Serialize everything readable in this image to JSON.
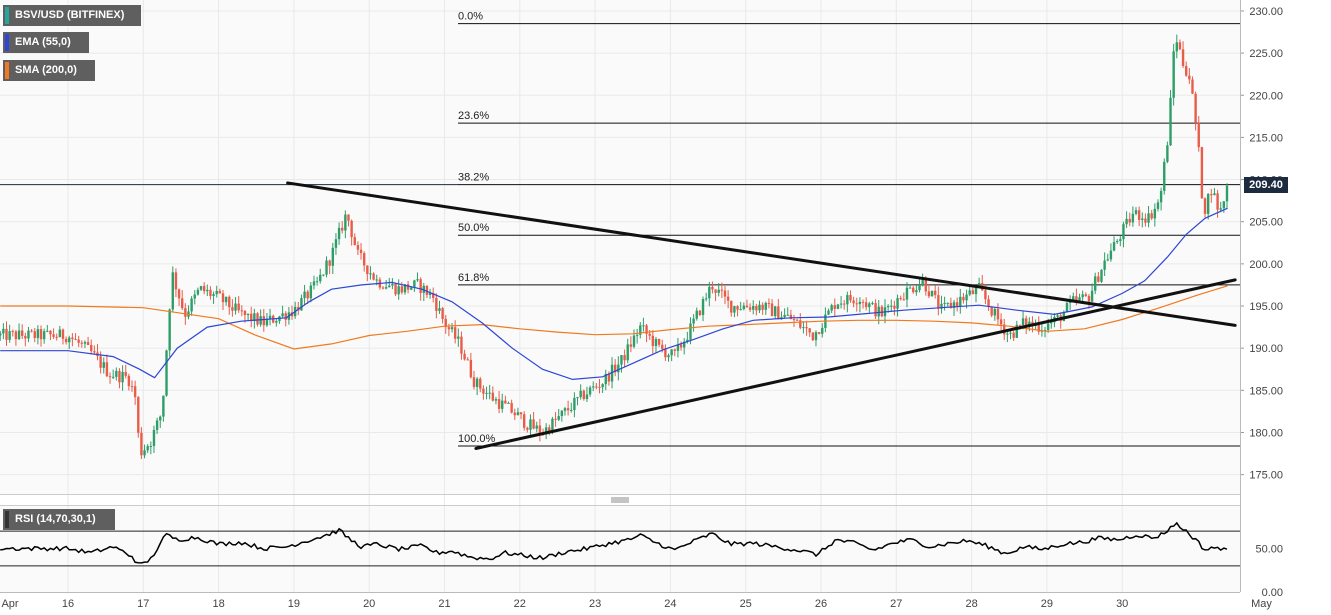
{
  "legends": {
    "main": "BSV/USD (BITFINEX)",
    "ema": "EMA (55,0)",
    "sma": "SMA (200,0)",
    "rsi": "RSI (14,70,30,1)"
  },
  "current_price": "209.40",
  "colors": {
    "up": "#2e9e68",
    "down": "#e85d4a",
    "ema": "#2d46d6",
    "sma": "#ef7a20",
    "trendline": "#111111",
    "fib": "#111111",
    "legend_bg": "#5f5f5f",
    "main_swatch": "#26a69a",
    "ema_swatch": "#2d46d6",
    "sma_swatch": "#ef7a20",
    "rsi_swatch": "#333333",
    "price_tag_bg": "#1d2b40",
    "grid": "#e9e9e9",
    "plot_bg": "#fafafa"
  },
  "chart_data": {
    "type": "candlestick",
    "pair": "BSV/USD",
    "exchange": "BITFINEX",
    "grid": true,
    "price_ylim": [
      172.7,
      231.3
    ],
    "y_ticks": [
      "230.00",
      "225.00",
      "220.00",
      "215.00",
      "210.00",
      "205.00",
      "200.00",
      "195.00",
      "190.00",
      "185.00",
      "180.00",
      "175.00"
    ],
    "x_ticks": [
      "Apr",
      "16",
      "17",
      "18",
      "19",
      "20",
      "21",
      "22",
      "23",
      "24",
      "25",
      "26",
      "27",
      "28",
      "29",
      "30",
      "May"
    ],
    "fibonacci": [
      {
        "label": "0.0%",
        "price": 228.5
      },
      {
        "label": "23.6%",
        "price": 216.7
      },
      {
        "label": "38.2%",
        "price": 209.4
      },
      {
        "label": "50.0%",
        "price": 203.4
      },
      {
        "label": "61.8%",
        "price": 197.5
      },
      {
        "label": "100.0%",
        "price": 178.4
      }
    ],
    "trendlines": [
      {
        "from": {
          "x": "Apr 18 22:00",
          "y": 209.6
        },
        "to": {
          "x": "May 1 12:00",
          "y": 192.7
        }
      },
      {
        "from": {
          "x": "Apr 21 10:00",
          "y": 178.1
        },
        "to": {
          "x": "May 1 12:00",
          "y": 198.1
        }
      }
    ],
    "close_path": [
      {
        "t": 0.0,
        "v": 191.5
      },
      {
        "t": 0.3,
        "v": 189.5
      },
      {
        "t": 0.55,
        "v": 187.0
      },
      {
        "t": 0.8,
        "v": 186.5
      },
      {
        "t": 0.9,
        "v": 184.0
      },
      {
        "t": 0.95,
        "v": 177.5
      },
      {
        "t": 1.1,
        "v": 179.0
      },
      {
        "t": 1.25,
        "v": 182.5
      },
      {
        "t": 1.38,
        "v": 199.0
      },
      {
        "t": 1.55,
        "v": 194.0
      },
      {
        "t": 1.75,
        "v": 197.0
      },
      {
        "t": 2.0,
        "v": 196.0
      },
      {
        "t": 2.3,
        "v": 194.0
      },
      {
        "t": 2.6,
        "v": 193.0
      },
      {
        "t": 3.0,
        "v": 194.5
      },
      {
        "t": 3.3,
        "v": 197.5
      },
      {
        "t": 3.5,
        "v": 201.0
      },
      {
        "t": 3.7,
        "v": 206.0
      },
      {
        "t": 3.85,
        "v": 201.0
      },
      {
        "t": 4.1,
        "v": 198.0
      },
      {
        "t": 4.4,
        "v": 197.0
      },
      {
        "t": 4.65,
        "v": 197.5
      },
      {
        "t": 4.85,
        "v": 196.0
      },
      {
        "t": 5.0,
        "v": 193.0
      },
      {
        "t": 5.2,
        "v": 190.5
      },
      {
        "t": 5.4,
        "v": 186.0
      },
      {
        "t": 5.65,
        "v": 184.0
      },
      {
        "t": 5.9,
        "v": 182.5
      },
      {
        "t": 6.1,
        "v": 181.0
      },
      {
        "t": 6.3,
        "v": 180.0
      },
      {
        "t": 6.55,
        "v": 182.0
      },
      {
        "t": 6.85,
        "v": 184.5
      },
      {
        "t": 7.1,
        "v": 186.0
      },
      {
        "t": 7.35,
        "v": 188.5
      },
      {
        "t": 7.6,
        "v": 192.5
      },
      {
        "t": 7.85,
        "v": 190.0
      },
      {
        "t": 8.05,
        "v": 189.0
      },
      {
        "t": 8.25,
        "v": 192.0
      },
      {
        "t": 8.55,
        "v": 197.5
      },
      {
        "t": 8.8,
        "v": 195.0
      },
      {
        "t": 9.2,
        "v": 195.0
      },
      {
        "t": 9.6,
        "v": 193.5
      },
      {
        "t": 9.9,
        "v": 191.5
      },
      {
        "t": 10.2,
        "v": 195.5
      },
      {
        "t": 10.5,
        "v": 196.0
      },
      {
        "t": 10.8,
        "v": 194.0
      },
      {
        "t": 11.1,
        "v": 196.5
      },
      {
        "t": 11.35,
        "v": 198.0
      },
      {
        "t": 11.6,
        "v": 194.5
      },
      {
        "t": 11.9,
        "v": 196.0
      },
      {
        "t": 12.1,
        "v": 197.0
      },
      {
        "t": 12.3,
        "v": 194.0
      },
      {
        "t": 12.5,
        "v": 191.5
      },
      {
        "t": 12.7,
        "v": 193.0
      },
      {
        "t": 12.95,
        "v": 192.5
      },
      {
        "t": 13.15,
        "v": 193.5
      },
      {
        "t": 13.35,
        "v": 195.5
      },
      {
        "t": 13.55,
        "v": 196.0
      },
      {
        "t": 13.75,
        "v": 200.0
      },
      {
        "t": 13.95,
        "v": 203.0
      },
      {
        "t": 14.15,
        "v": 206.0
      },
      {
        "t": 14.35,
        "v": 205.5
      },
      {
        "t": 14.5,
        "v": 207.5
      },
      {
        "t": 14.62,
        "v": 216.0
      },
      {
        "t": 14.7,
        "v": 227.5
      },
      {
        "t": 14.8,
        "v": 224.0
      },
      {
        "t": 14.9,
        "v": 222.0
      },
      {
        "t": 15.0,
        "v": 215.0
      },
      {
        "t": 15.08,
        "v": 206.0
      },
      {
        "t": 15.18,
        "v": 209.0
      },
      {
        "t": 15.3,
        "v": 206.0
      },
      {
        "t": 15.4,
        "v": 209.4
      }
    ],
    "ema_path": [
      {
        "t": 0.0,
        "v": 189.7
      },
      {
        "t": 0.6,
        "v": 189.0
      },
      {
        "t": 0.95,
        "v": 187.5
      },
      {
        "t": 1.15,
        "v": 186.5
      },
      {
        "t": 1.45,
        "v": 190.0
      },
      {
        "t": 1.85,
        "v": 192.5
      },
      {
        "t": 2.3,
        "v": 193.2
      },
      {
        "t": 2.9,
        "v": 193.6
      },
      {
        "t": 3.2,
        "v": 195.5
      },
      {
        "t": 3.5,
        "v": 197.0
      },
      {
        "t": 3.9,
        "v": 197.5
      },
      {
        "t": 4.3,
        "v": 197.8
      },
      {
        "t": 4.7,
        "v": 197.0
      },
      {
        "t": 5.1,
        "v": 195.5
      },
      {
        "t": 5.5,
        "v": 193.0
      },
      {
        "t": 5.9,
        "v": 190.0
      },
      {
        "t": 6.3,
        "v": 187.5
      },
      {
        "t": 6.7,
        "v": 186.3
      },
      {
        "t": 7.1,
        "v": 186.6
      },
      {
        "t": 7.5,
        "v": 188.2
      },
      {
        "t": 7.9,
        "v": 189.8
      },
      {
        "t": 8.3,
        "v": 191.0
      },
      {
        "t": 8.7,
        "v": 192.3
      },
      {
        "t": 9.1,
        "v": 193.3
      },
      {
        "t": 9.6,
        "v": 193.6
      },
      {
        "t": 10.1,
        "v": 193.7
      },
      {
        "t": 10.6,
        "v": 194.1
      },
      {
        "t": 11.1,
        "v": 194.5
      },
      {
        "t": 11.6,
        "v": 194.8
      },
      {
        "t": 12.1,
        "v": 195.1
      },
      {
        "t": 12.6,
        "v": 194.5
      },
      {
        "t": 13.1,
        "v": 194.0
      },
      {
        "t": 13.6,
        "v": 194.9
      },
      {
        "t": 14.0,
        "v": 196.5
      },
      {
        "t": 14.3,
        "v": 198.0
      },
      {
        "t": 14.6,
        "v": 200.8
      },
      {
        "t": 14.85,
        "v": 203.5
      },
      {
        "t": 15.1,
        "v": 205.4
      },
      {
        "t": 15.4,
        "v": 206.6
      }
    ],
    "sma_path": [
      {
        "t": 0.0,
        "v": 195.0
      },
      {
        "t": 1.0,
        "v": 194.8
      },
      {
        "t": 2.0,
        "v": 193.5
      },
      {
        "t": 2.5,
        "v": 191.5
      },
      {
        "t": 3.0,
        "v": 189.9
      },
      {
        "t": 3.5,
        "v": 190.5
      },
      {
        "t": 4.0,
        "v": 191.5
      },
      {
        "t": 4.5,
        "v": 192.0
      },
      {
        "t": 5.0,
        "v": 192.6
      },
      {
        "t": 5.5,
        "v": 192.8
      },
      {
        "t": 6.0,
        "v": 192.3
      },
      {
        "t": 6.5,
        "v": 191.9
      },
      {
        "t": 7.0,
        "v": 191.6
      },
      {
        "t": 7.5,
        "v": 191.7
      },
      {
        "t": 8.0,
        "v": 192.2
      },
      {
        "t": 8.5,
        "v": 192.6
      },
      {
        "t": 9.0,
        "v": 192.8
      },
      {
        "t": 9.5,
        "v": 193.0
      },
      {
        "t": 10.0,
        "v": 193.2
      },
      {
        "t": 10.5,
        "v": 193.3
      },
      {
        "t": 11.0,
        "v": 193.3
      },
      {
        "t": 11.5,
        "v": 193.2
      },
      {
        "t": 12.0,
        "v": 193.0
      },
      {
        "t": 12.5,
        "v": 192.6
      },
      {
        "t": 13.0,
        "v": 192.0
      },
      {
        "t": 13.5,
        "v": 192.3
      },
      {
        "t": 14.0,
        "v": 193.4
      },
      {
        "t": 14.5,
        "v": 194.8
      },
      {
        "t": 15.0,
        "v": 196.3
      },
      {
        "t": 15.4,
        "v": 197.4
      }
    ],
    "rsi": {
      "ylim": [
        0,
        100
      ],
      "y_ticks": [
        "50.00",
        "0.00"
      ],
      "levels": [
        70,
        30
      ],
      "path": [
        {
          "t": 0.0,
          "v": 50
        },
        {
          "t": 0.3,
          "v": 45
        },
        {
          "t": 0.6,
          "v": 52
        },
        {
          "t": 0.85,
          "v": 41
        },
        {
          "t": 0.95,
          "v": 30
        },
        {
          "t": 1.1,
          "v": 38
        },
        {
          "t": 1.3,
          "v": 66
        },
        {
          "t": 1.45,
          "v": 60
        },
        {
          "t": 1.7,
          "v": 63
        },
        {
          "t": 2.0,
          "v": 55
        },
        {
          "t": 2.3,
          "v": 57
        },
        {
          "t": 2.6,
          "v": 50
        },
        {
          "t": 2.9,
          "v": 52
        },
        {
          "t": 3.1,
          "v": 57
        },
        {
          "t": 3.3,
          "v": 62
        },
        {
          "t": 3.45,
          "v": 66
        },
        {
          "t": 3.6,
          "v": 71
        },
        {
          "t": 3.75,
          "v": 60
        },
        {
          "t": 3.9,
          "v": 52
        },
        {
          "t": 4.1,
          "v": 55
        },
        {
          "t": 4.4,
          "v": 49
        },
        {
          "t": 4.7,
          "v": 53
        },
        {
          "t": 4.9,
          "v": 45
        },
        {
          "t": 5.1,
          "v": 47
        },
        {
          "t": 5.35,
          "v": 40
        },
        {
          "t": 5.6,
          "v": 38
        },
        {
          "t": 5.8,
          "v": 45
        },
        {
          "t": 6.05,
          "v": 42
        },
        {
          "t": 6.3,
          "v": 39
        },
        {
          "t": 6.6,
          "v": 46
        },
        {
          "t": 6.9,
          "v": 50
        },
        {
          "t": 7.2,
          "v": 56
        },
        {
          "t": 7.45,
          "v": 60
        },
        {
          "t": 7.6,
          "v": 65
        },
        {
          "t": 7.8,
          "v": 57
        },
        {
          "t": 8.05,
          "v": 48
        },
        {
          "t": 8.3,
          "v": 58
        },
        {
          "t": 8.55,
          "v": 67
        },
        {
          "t": 8.8,
          "v": 55
        },
        {
          "t": 9.1,
          "v": 56
        },
        {
          "t": 9.4,
          "v": 52
        },
        {
          "t": 9.7,
          "v": 48
        },
        {
          "t": 9.95,
          "v": 43
        },
        {
          "t": 10.2,
          "v": 60
        },
        {
          "t": 10.45,
          "v": 56
        },
        {
          "t": 10.7,
          "v": 48
        },
        {
          "t": 10.95,
          "v": 56
        },
        {
          "t": 11.2,
          "v": 60
        },
        {
          "t": 11.45,
          "v": 52
        },
        {
          "t": 11.7,
          "v": 56
        },
        {
          "t": 11.95,
          "v": 59
        },
        {
          "t": 12.2,
          "v": 53
        },
        {
          "t": 12.45,
          "v": 44
        },
        {
          "t": 12.7,
          "v": 52
        },
        {
          "t": 12.95,
          "v": 49
        },
        {
          "t": 13.2,
          "v": 55
        },
        {
          "t": 13.45,
          "v": 57
        },
        {
          "t": 13.7,
          "v": 62
        },
        {
          "t": 13.95,
          "v": 60
        },
        {
          "t": 14.2,
          "v": 66
        },
        {
          "t": 14.4,
          "v": 62
        },
        {
          "t": 14.55,
          "v": 67
        },
        {
          "t": 14.7,
          "v": 79
        },
        {
          "t": 14.85,
          "v": 70
        },
        {
          "t": 15.0,
          "v": 58
        },
        {
          "t": 15.1,
          "v": 48
        },
        {
          "t": 15.2,
          "v": 52
        },
        {
          "t": 15.3,
          "v": 48
        },
        {
          "t": 15.4,
          "v": 52
        }
      ]
    }
  }
}
